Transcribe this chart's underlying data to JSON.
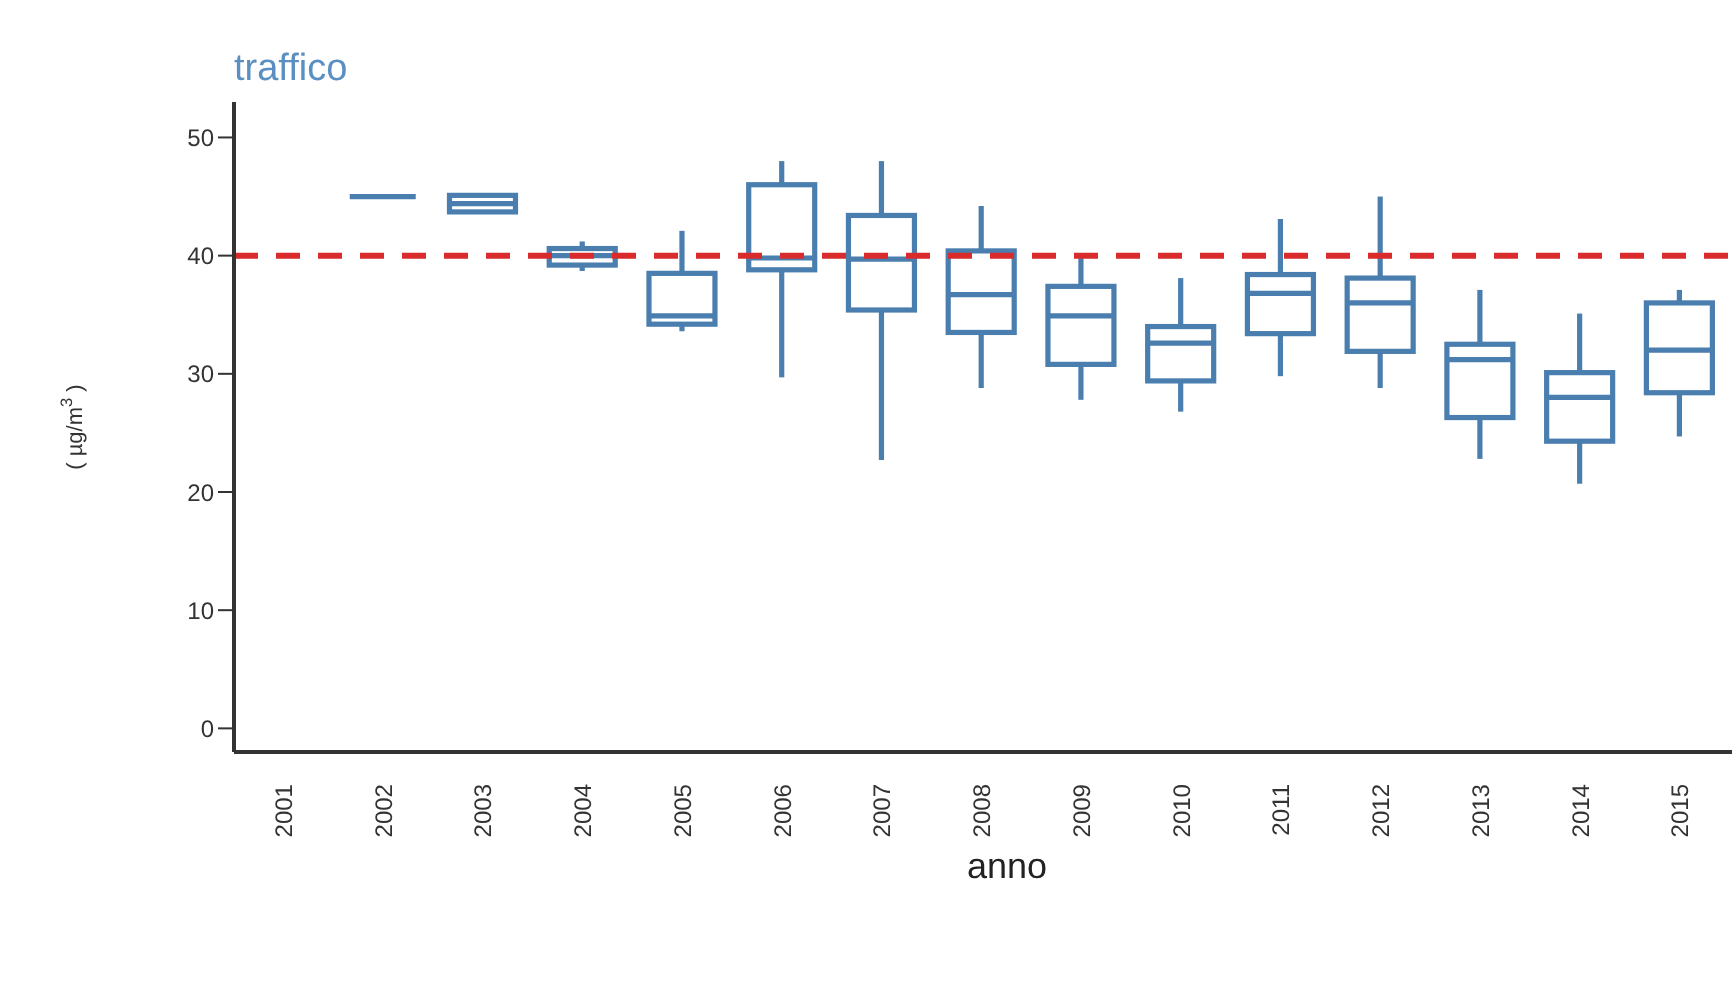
{
  "chart_data": {
    "type": "box",
    "title": "traffico",
    "xlabel": "anno",
    "ylabel": "( µg/m$^{3}$ )",
    "categories": [
      "2001",
      "2002",
      "2003",
      "2004",
      "2005",
      "2006",
      "2007",
      "2008",
      "2009",
      "2010",
      "2011",
      "2012",
      "2013",
      "2014",
      "2015"
    ],
    "color": "#4a7eae",
    "boxes": [
      null,
      {
        "low": 45,
        "q1": 45,
        "median": 45,
        "q3": 45,
        "high": 45
      },
      {
        "low": 43.7,
        "q1": 43.7,
        "median": 44.4,
        "q3": 45.1,
        "high": 45.1
      },
      {
        "low": 38.7,
        "q1": 39.2,
        "median": 40,
        "q3": 40.6,
        "high": 41.2
      },
      {
        "low": 33.6,
        "q1": 34.2,
        "median": 34.9,
        "q3": 38.5,
        "high": 42.1
      },
      {
        "low": 29.7,
        "q1": 38.8,
        "median": 39.8,
        "q3": 46,
        "high": 48
      },
      {
        "low": 22.7,
        "q1": 35.4,
        "median": 39.7,
        "q3": 43.4,
        "high": 48
      },
      {
        "low": 28.8,
        "q1": 33.5,
        "median": 36.7,
        "q3": 40.4,
        "high": 44.2
      },
      {
        "low": 27.8,
        "q1": 30.8,
        "median": 34.9,
        "q3": 37.4,
        "high": 39.8
      },
      {
        "low": 26.8,
        "q1": 29.4,
        "median": 32.6,
        "q3": 34,
        "high": 38.1
      },
      {
        "low": 29.8,
        "q1": 33.4,
        "median": 36.8,
        "q3": 38.4,
        "high": 43.1
      },
      {
        "low": 28.8,
        "q1": 31.9,
        "median": 36,
        "q3": 38.1,
        "high": 45
      },
      {
        "low": 22.8,
        "q1": 26.3,
        "median": 31.2,
        "q3": 32.5,
        "high": 37.1
      },
      {
        "low": 20.7,
        "q1": 24.3,
        "median": 28,
        "q3": 30.1,
        "high": 35.1
      },
      {
        "low": 24.7,
        "q1": 28.4,
        "median": 32,
        "q3": 36,
        "high": 37.1
      }
    ],
    "ylim": [
      -2,
      53
    ],
    "yticks": [
      0,
      10,
      20,
      30,
      40,
      50
    ],
    "grid": false,
    "legend": false,
    "ref_lines": [
      {
        "axis": "y",
        "value": 40,
        "color": "#d92b2b",
        "line_style": "dashed"
      }
    ]
  }
}
